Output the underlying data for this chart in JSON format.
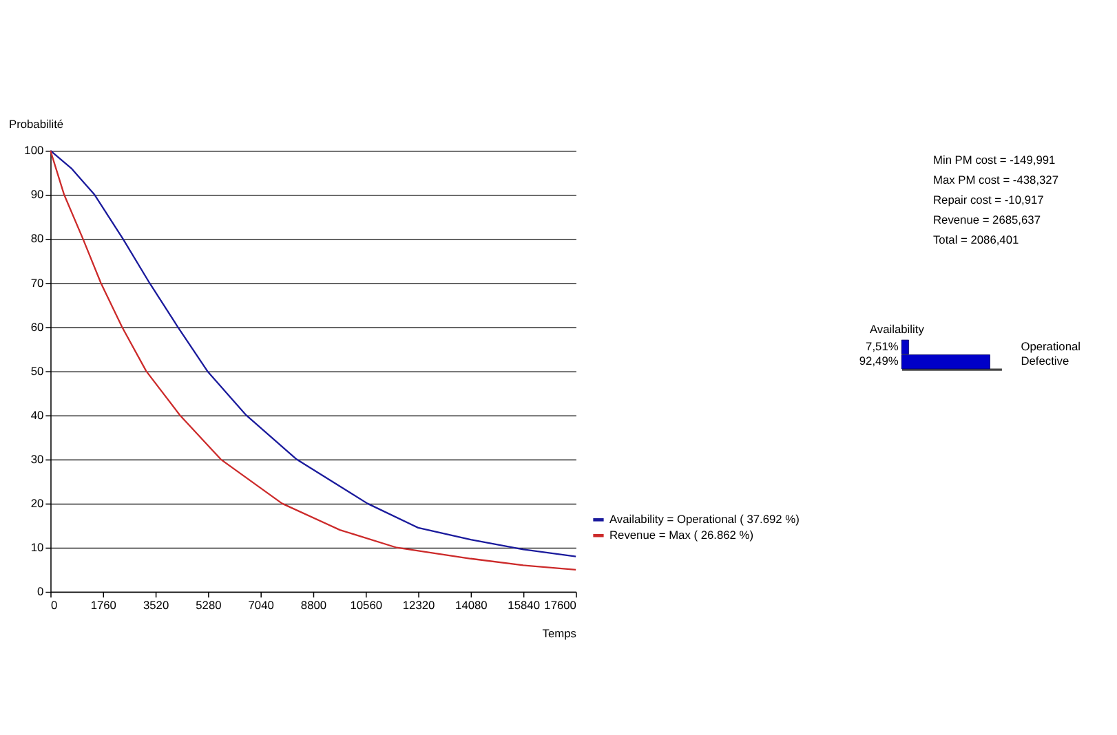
{
  "chart_data": [
    {
      "type": "line",
      "xlabel": "Temps",
      "ylabel": "Probabilité",
      "xlim": [
        0,
        17600
      ],
      "xticks": [
        0,
        1760,
        3520,
        5280,
        7040,
        8800,
        10560,
        12320,
        14080,
        15840,
        17600
      ],
      "ylim": [
        0,
        100
      ],
      "yticks": [
        0,
        10,
        20,
        30,
        40,
        50,
        60,
        70,
        80,
        90,
        100
      ],
      "grid": "y",
      "legend": "right",
      "marker": "none",
      "line_style": "solid",
      "annotations": [
        "Min PM cost = -149,991",
        "Max PM cost = -438,327",
        "Repair cost = -10,917",
        "Revenue = 2685,637",
        "Total = 2086,401"
      ],
      "series": [
        {
          "name": "Availability = Operational ( 37.692 %)",
          "color": "#1a1a9c",
          "x": [
            0,
            700,
            1480,
            2430,
            3320,
            4270,
            5260,
            6560,
            8250,
            10620,
            12320,
            14080,
            15840,
            17600
          ],
          "values": [
            100,
            96,
            90,
            80,
            70,
            60,
            50,
            40,
            30,
            20,
            14.5,
            11.8,
            9.6,
            8
          ]
        },
        {
          "name": "Revenue = Max ( 26.862 %)",
          "color": "#cc2a2a",
          "x": [
            0,
            460,
            1090,
            1690,
            2400,
            3210,
            4340,
            5710,
            7760,
            9700,
            11600,
            14080,
            15840,
            17600
          ],
          "values": [
            100,
            90,
            80,
            70,
            60,
            50,
            40,
            30,
            20,
            14,
            10,
            7.5,
            6,
            5
          ]
        }
      ]
    },
    {
      "type": "bar",
      "orientation": "horizontal",
      "title": "Availability",
      "categories": [
        "Operational",
        "Defective"
      ],
      "values": [
        7.51,
        92.49
      ],
      "color": "#0000c8",
      "value_labels": [
        "7,51%",
        "92,49%"
      ]
    }
  ]
}
